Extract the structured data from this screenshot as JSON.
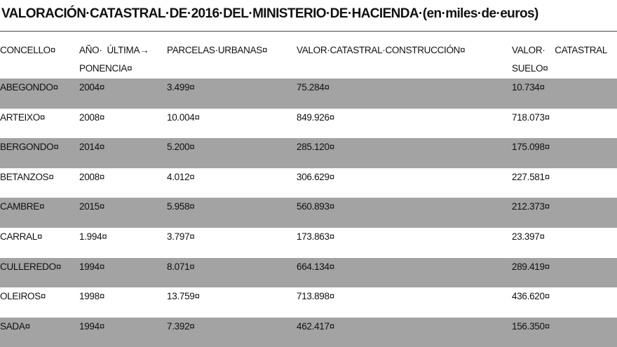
{
  "title": "VALORACIÓN·CATASTRAL·DE·2016·DEL·MINISTERIO·DE·HACIENDA·(en·miles·de·euros)",
  "table": {
    "header": [
      [
        "CONCELLO¤"
      ],
      [
        "AÑO·  ÚLTIMA→",
        "PONENCIA¤"
      ],
      [
        "PARCELAS·URBANAS¤"
      ],
      [
        "VALOR·CATASTRAL·CONSTRUCCIÓN¤"
      ],
      [
        "VALOR·    CATASTRAL",
        "SUELO¤"
      ]
    ],
    "rows": [
      [
        "ABEGONDO¤",
        "2004¤",
        "3.499¤",
        "75.284¤",
        "10.734¤"
      ],
      [
        "ARTEIXO¤",
        "2008¤",
        "10.004¤",
        "849.926¤",
        "718.073¤"
      ],
      [
        "BERGONDO¤",
        "2014¤",
        "5.200¤",
        "285.120¤",
        "175.098¤"
      ],
      [
        "BETANZOS¤",
        "2008¤",
        "4.012¤",
        "306.629¤",
        "227.581¤"
      ],
      [
        "CAMBRE¤",
        "2015¤",
        "5.958¤",
        "560.893¤",
        "212.373¤"
      ],
      [
        "CARRAL¤",
        "1.994¤",
        "3.797¤",
        "173.863¤",
        "23.397¤"
      ],
      [
        "CULLEREDO¤",
        "1994¤",
        "8.071¤",
        "664.134¤",
        "289.419¤"
      ],
      [
        "OLEIROS¤",
        "1998¤",
        "13.759¤",
        "713.898¤",
        "436.620¤"
      ],
      [
        "SADA¤",
        "1994¤",
        "7.392¤",
        "462.417¤",
        "156.350¤"
      ]
    ]
  }
}
